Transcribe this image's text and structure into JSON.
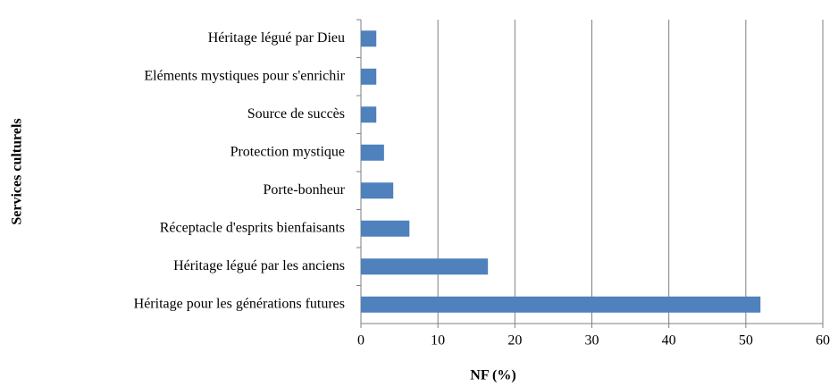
{
  "chart_data": {
    "type": "bar",
    "orientation": "horizontal",
    "categories": [
      "Héritage légué par Dieu",
      "Eléments mystiques pour s'enrichir",
      "Source de succès",
      "Protection mystique",
      "Porte-bonheur",
      "Réceptacle d'esprits bienfaisants",
      "Héritage légué par les anciens",
      "Héritage pour les générations futures"
    ],
    "values": [
      2,
      2,
      2,
      3,
      4.2,
      6.3,
      16.5,
      51.9
    ],
    "color": "#4f81bd",
    "xlim": [
      0,
      60
    ],
    "xticks": [
      0,
      10,
      20,
      30,
      40,
      50,
      60
    ],
    "grid": true,
    "x_label": "NF (%)",
    "y_label": "Services culturels"
  }
}
